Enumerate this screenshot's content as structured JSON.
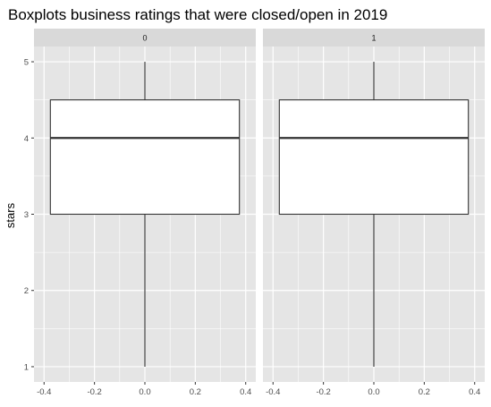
{
  "chart_data": {
    "type": "boxplot",
    "title": "Boxplots business ratings that were closed/open in 2019",
    "xlabel": "",
    "ylabel": "stars",
    "xlim": [
      -0.4,
      0.4
    ],
    "ylim": [
      1,
      5
    ],
    "x_ticks": [
      -0.4,
      -0.2,
      0.0,
      0.2,
      0.4
    ],
    "x_tick_labels": [
      "-0.4",
      "-0.2",
      "0.0",
      "0.2",
      "0.4"
    ],
    "y_ticks": [
      1,
      2,
      3,
      4,
      5
    ],
    "y_tick_labels": [
      "1",
      "2",
      "3",
      "4",
      "5"
    ],
    "grid": true,
    "box_half_width": 0.375,
    "facets": [
      {
        "label": "0",
        "min": 1,
        "q1": 3,
        "median": 4,
        "q3": 4.5,
        "max": 5
      },
      {
        "label": "1",
        "min": 1,
        "q1": 3,
        "median": 4,
        "q3": 4.5,
        "max": 5
      }
    ],
    "colors": {
      "panel_bg": "#e5e5e5",
      "strip_bg": "#d9d9d9",
      "grid": "#ffffff",
      "box_fill": "#ffffff",
      "box_stroke": "#333333"
    }
  }
}
